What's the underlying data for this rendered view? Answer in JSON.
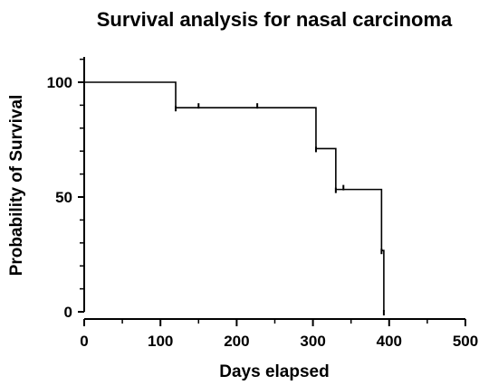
{
  "chart_data": {
    "type": "line",
    "subtype": "kaplan-meier",
    "title": "Survival analysis for nasal carcinoma",
    "xlabel": "Days elapsed",
    "ylabel": "Probability of Survival",
    "xlim": [
      0,
      500
    ],
    "ylim": [
      0,
      100
    ],
    "x_ticks": [
      "0",
      "100",
      "200",
      "300",
      "400",
      "500"
    ],
    "y_ticks": [
      "0",
      "50",
      "100"
    ],
    "grid": false,
    "legend": "none",
    "color": "#000000",
    "steps": [
      {
        "x": 0,
        "y": 100
      },
      {
        "x": 120,
        "y": 88.9
      },
      {
        "x": 304,
        "y": 71.1
      },
      {
        "x": 330,
        "y": 53.3
      },
      {
        "x": 390,
        "y": 26.7
      },
      {
        "x": 393,
        "y": 0
      }
    ],
    "censored": [
      {
        "x": 150,
        "y": 88.9
      },
      {
        "x": 227,
        "y": 88.9
      },
      {
        "x": 340,
        "y": 53.3
      }
    ]
  }
}
